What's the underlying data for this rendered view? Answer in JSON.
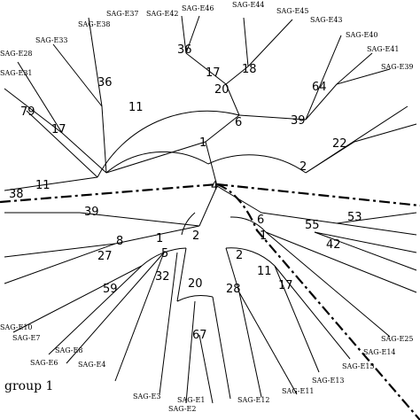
{
  "tree": {
    "leaves": [
      {
        "label": "SAG-E1"
      },
      {
        "label": "SAG-E2"
      },
      {
        "label": "SAG-E3"
      },
      {
        "label": "SAG-E4"
      },
      {
        "label": "SAG-E6"
      },
      {
        "label": "SAG-E7"
      },
      {
        "label": "SAG-E8"
      },
      {
        "label": "SAG-E10"
      },
      {
        "label": "SAG-E11"
      },
      {
        "label": "SAG-E12"
      },
      {
        "label": "SAG-E13"
      },
      {
        "label": "SAG-E14"
      },
      {
        "label": "SAG-E15"
      },
      {
        "label": "SAG-E25"
      },
      {
        "label": "SAG-E28"
      },
      {
        "label": "SAG-E31"
      },
      {
        "label": "SAG-E33"
      },
      {
        "label": "SAG-E37"
      },
      {
        "label": "SAG-E38"
      },
      {
        "label": "SAG-E39"
      },
      {
        "label": "SAG-E40"
      },
      {
        "label": "SAG-E41"
      },
      {
        "label": "SAG-E42"
      },
      {
        "label": "SAG-E43"
      },
      {
        "label": "SAG-E44"
      },
      {
        "label": "SAG-E45"
      },
      {
        "label": "SAG-E46"
      }
    ],
    "bootstrap": [
      "36",
      "17",
      "18",
      "20",
      "64",
      "36",
      "11",
      "79",
      "17",
      "6",
      "39",
      "22",
      "1",
      "2",
      "4",
      "38",
      "11",
      "39",
      "8",
      "27",
      "1",
      "5",
      "2",
      "55",
      "53",
      "42",
      "6",
      "1",
      "59",
      "32",
      "20",
      "28",
      "2",
      "11",
      "17",
      "67"
    ],
    "group_label": "group 1"
  }
}
